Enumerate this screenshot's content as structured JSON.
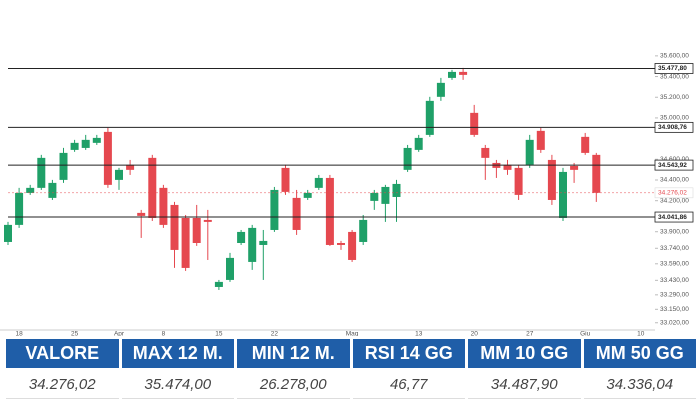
{
  "chart_data": {
    "type": "candlestick",
    "categories": [
      null,
      "18",
      null,
      null,
      null,
      null,
      "25",
      null,
      null,
      null,
      "Apr",
      null,
      null,
      null,
      "8",
      null,
      null,
      null,
      null,
      "15",
      null,
      null,
      null,
      null,
      "22",
      null,
      null,
      null,
      null,
      null,
      null,
      "Mag",
      null,
      null,
      null,
      null,
      null,
      "13",
      null,
      null,
      null,
      null,
      "20",
      null,
      null,
      null,
      null,
      "27",
      null,
      null,
      null,
      null,
      "Giu",
      null,
      null,
      null,
      null,
      "10"
    ],
    "open": [
      33801,
      33966,
      34275,
      34324,
      34227,
      34401,
      34691,
      34710,
      34759,
      34865,
      34401,
      34546,
      34082,
      34614,
      34324,
      34159,
      34033,
      34033,
      34014,
      33366,
      33434,
      33791,
      33608,
      33772,
      33917,
      34517,
      34227,
      34227,
      34324,
      34420,
      33791,
      33898,
      33801,
      34198,
      34169,
      34236,
      34498,
      34691,
      34836,
      35204,
      35387,
      35445,
      35049,
      34710,
      34565,
      34546,
      34517,
      34546,
      34875,
      34594,
      34033,
      34536,
      34817,
      34643,
      null,
      null,
      null,
      null
    ],
    "high": [
      33995,
      34324,
      34353,
      34643,
      34401,
      34710,
      34788,
      34836,
      34836,
      34904,
      34517,
      34594,
      34111,
      34643,
      34353,
      34188,
      34062,
      34159,
      34111,
      33434,
      33695,
      33917,
      33966,
      33917,
      34333,
      34546,
      34304,
      34304,
      34449,
      34449,
      33811,
      33917,
      34062,
      34304,
      34353,
      34401,
      34739,
      34836,
      35204,
      35387,
      35465,
      35484,
      35126,
      34739,
      34594,
      34594,
      34546,
      34836,
      34904,
      34643,
      34517,
      34565,
      34855,
      34662,
      null,
      null,
      null,
      null
    ],
    "low": [
      33772,
      33937,
      34256,
      34304,
      34207,
      34372,
      34672,
      34691,
      34739,
      34324,
      34304,
      34449,
      33840,
      34004,
      33937,
      33550,
      33521,
      33763,
      33627,
      33337,
      33415,
      33772,
      33531,
      33434,
      33898,
      34256,
      33869,
      34207,
      34304,
      33763,
      33724,
      33608,
      33772,
      34111,
      33995,
      33995,
      34478,
      34672,
      34817,
      35165,
      35368,
      35368,
      34817,
      34401,
      34420,
      34449,
      34207,
      34517,
      34662,
      34159,
      34004,
      34372,
      34643,
      34188,
      null,
      null,
      null,
      null
    ],
    "close": [
      33966,
      34275,
      34324,
      34614,
      34372,
      34662,
      34759,
      34788,
      34807,
      34353,
      34498,
      34498,
      34053,
      34033,
      33966,
      33724,
      33550,
      33791,
      33995,
      33415,
      33647,
      33898,
      33937,
      33811,
      34304,
      34285,
      33917,
      34275,
      34420,
      33772,
      33772,
      33627,
      34014,
      34275,
      34333,
      34362,
      34710,
      34807,
      35165,
      35339,
      35445,
      35416,
      34836,
      34614,
      34517,
      34498,
      34256,
      34788,
      34691,
      34207,
      34478,
      34498,
      34662,
      34276,
      null,
      null,
      null,
      null
    ],
    "up_color": "#1fa068",
    "down_color": "#e5484f",
    "ylim": [
      32950,
      35850
    ],
    "yticks": [
      {
        "value": 35600,
        "label": "35.600,00"
      },
      {
        "value": 35400,
        "label": "35.400,00"
      },
      {
        "value": 35200,
        "label": "35.200,00"
      },
      {
        "value": 35000,
        "label": "35.000,00"
      },
      {
        "value": 34600,
        "label": "34.600,00"
      },
      {
        "value": 34400,
        "label": "34.400,00"
      },
      {
        "value": 34200,
        "label": "34.200,00"
      },
      {
        "value": 33900,
        "label": "33.900,00"
      },
      {
        "value": 33740,
        "label": "33.740,00"
      },
      {
        "value": 33590,
        "label": "33.590,00"
      },
      {
        "value": 33430,
        "label": "33.430,00"
      },
      {
        "value": 33290,
        "label": "33.290,00"
      },
      {
        "value": 33150,
        "label": "33.150,00"
      },
      {
        "value": 33020,
        "label": "33.020,00"
      }
    ],
    "levels": [
      {
        "value": 35477.8,
        "label": "35.477,80"
      },
      {
        "value": 34908.76,
        "label": "34.908,76"
      },
      {
        "value": 34543.92,
        "label": "34.543,92"
      },
      {
        "value": 34041.86,
        "label": "34.041,86"
      }
    ],
    "level_color": "#222222",
    "last_price": {
      "value": 34276.02,
      "label": "34.276,02"
    },
    "last_price_color": "#e5484f"
  },
  "table": {
    "headers": [
      "VALORE",
      "MAX 12 M.",
      "MIN 12 M.",
      "RSI 14 GG",
      "MM 10 GG",
      "MM 50 GG"
    ],
    "rows": [
      [
        "34.276,02",
        "35.474,00",
        "26.278,00",
        "46,77",
        "34.487,90",
        "34.336,04"
      ]
    ]
  }
}
